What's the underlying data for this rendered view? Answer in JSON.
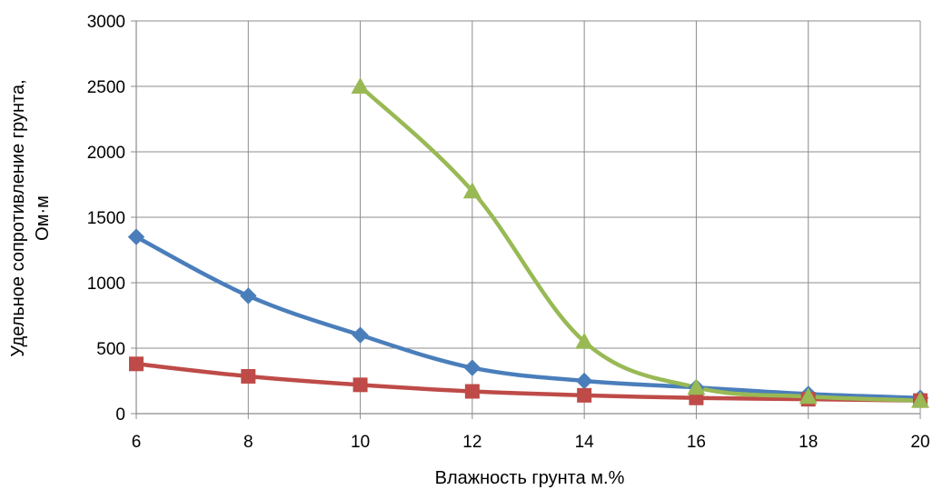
{
  "chart_data": {
    "type": "line",
    "title": "",
    "xlabel": "Влажность грунта м.%",
    "ylabel_lines": [
      "Удельное сопротивление грунта,",
      "Ом·м"
    ],
    "x": [
      6,
      8,
      10,
      12,
      14,
      16,
      18,
      20
    ],
    "xlim": [
      6,
      20
    ],
    "ylim": [
      0,
      3000
    ],
    "x_ticks": [
      "6",
      "8",
      "10",
      "12",
      "14",
      "16",
      "18",
      "20"
    ],
    "y_ticks": [
      "0",
      "500",
      "1000",
      "1500",
      "2000",
      "2500",
      "3000"
    ],
    "grid": true,
    "legend": "none",
    "series": [
      {
        "color": "#4a7ebb",
        "marker": "diamond",
        "points": [
          [
            6,
            1350
          ],
          [
            8,
            900
          ],
          [
            10,
            600
          ],
          [
            12,
            350
          ],
          [
            14,
            250
          ],
          [
            16,
            200
          ],
          [
            18,
            150
          ],
          [
            20,
            120
          ]
        ]
      },
      {
        "color": "#be4b48",
        "marker": "square",
        "points": [
          [
            6,
            380
          ],
          [
            8,
            285
          ],
          [
            10,
            220
          ],
          [
            12,
            170
          ],
          [
            14,
            140
          ],
          [
            16,
            120
          ],
          [
            18,
            110
          ],
          [
            20,
            100
          ]
        ]
      },
      {
        "color": "#98b954",
        "marker": "triangle",
        "points": [
          [
            10,
            2500
          ],
          [
            12,
            1700
          ],
          [
            14,
            550
          ],
          [
            16,
            200
          ],
          [
            18,
            130
          ],
          [
            20,
            100
          ]
        ]
      }
    ]
  }
}
